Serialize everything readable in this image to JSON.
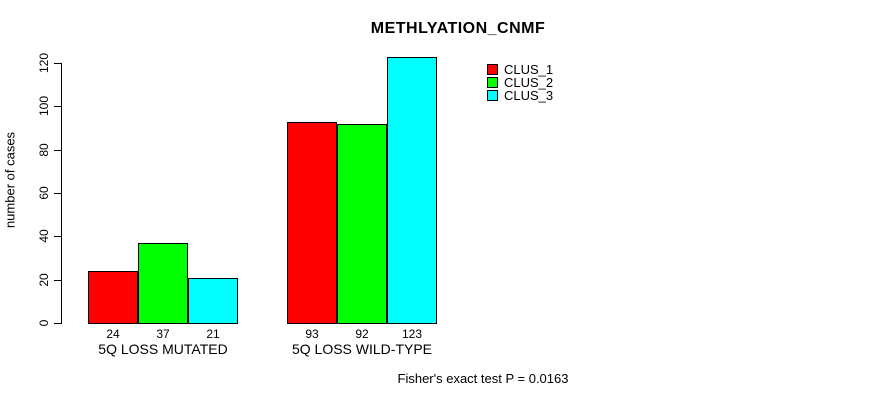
{
  "title": "METHLYATION_CNMF",
  "y_axis": {
    "label": "number of cases"
  },
  "footer": "Fisher's exact test P = 0.0163",
  "legend": {
    "items": [
      {
        "label": "CLUS_1",
        "color": "#ff0000"
      },
      {
        "label": "CLUS_2",
        "color": "#00ff00"
      },
      {
        "label": "CLUS_3",
        "color": "#00ffff"
      }
    ]
  },
  "chart_data": {
    "type": "bar",
    "title": "METHLYATION_CNMF",
    "xlabel": "",
    "ylabel": "number of cases",
    "categories": [
      "5Q LOSS MUTATED",
      "5Q LOSS WILD-TYPE"
    ],
    "series": [
      {
        "name": "CLUS_1",
        "color": "#ff0000",
        "values": [
          24,
          93
        ]
      },
      {
        "name": "CLUS_2",
        "color": "#00ff00",
        "values": [
          37,
          92
        ]
      },
      {
        "name": "CLUS_3",
        "color": "#00ffff",
        "values": [
          21,
          123
        ]
      }
    ],
    "bar_value_labels": [
      [
        24,
        37,
        21
      ],
      [
        93,
        92,
        123
      ]
    ],
    "yticks": [
      0,
      20,
      40,
      60,
      80,
      100,
      120
    ],
    "ylim": [
      0,
      123
    ],
    "grid": false,
    "legend_position": "top-right",
    "annotation": "Fisher's exact test P = 0.0163"
  }
}
